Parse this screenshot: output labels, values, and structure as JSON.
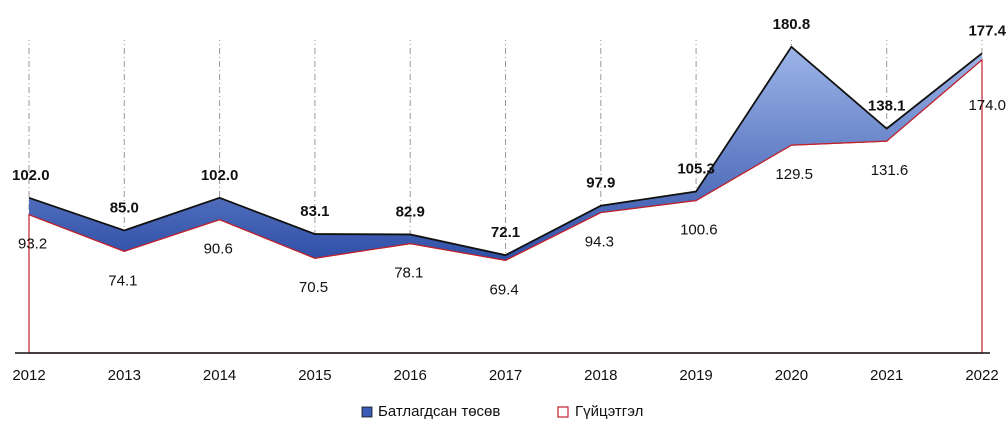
{
  "chart_data": {
    "type": "area",
    "categories": [
      "2012",
      "2013",
      "2014",
      "2015",
      "2016",
      "2017",
      "2018",
      "2019",
      "2020",
      "2021",
      "2022"
    ],
    "series": [
      {
        "name": "Батлагдсан төсөв",
        "color": "#3a5cb8",
        "values": [
          102.0,
          85.0,
          102.0,
          83.1,
          82.9,
          72.1,
          97.9,
          105.3,
          180.8,
          138.1,
          177.4
        ],
        "value_labels": [
          "102.0",
          "85.0",
          "102.0",
          "83.1",
          "82.9",
          "72.1",
          "97.9",
          "105.3",
          "180.8",
          "138.1",
          "177.4"
        ]
      },
      {
        "name": "Гүйцэтгэл",
        "color": "#c0202a",
        "values": [
          93.2,
          74.1,
          90.6,
          70.5,
          78.1,
          69.4,
          94.3,
          100.6,
          129.5,
          131.6,
          174.0
        ],
        "value_labels": [
          "93.2",
          "74.1",
          "90.6",
          "70.5",
          "78.1",
          "69.4",
          "94.3",
          "100.6",
          "129.5",
          "131.6",
          "174.0"
        ]
      }
    ],
    "ylim": [
      20,
      200
    ]
  }
}
